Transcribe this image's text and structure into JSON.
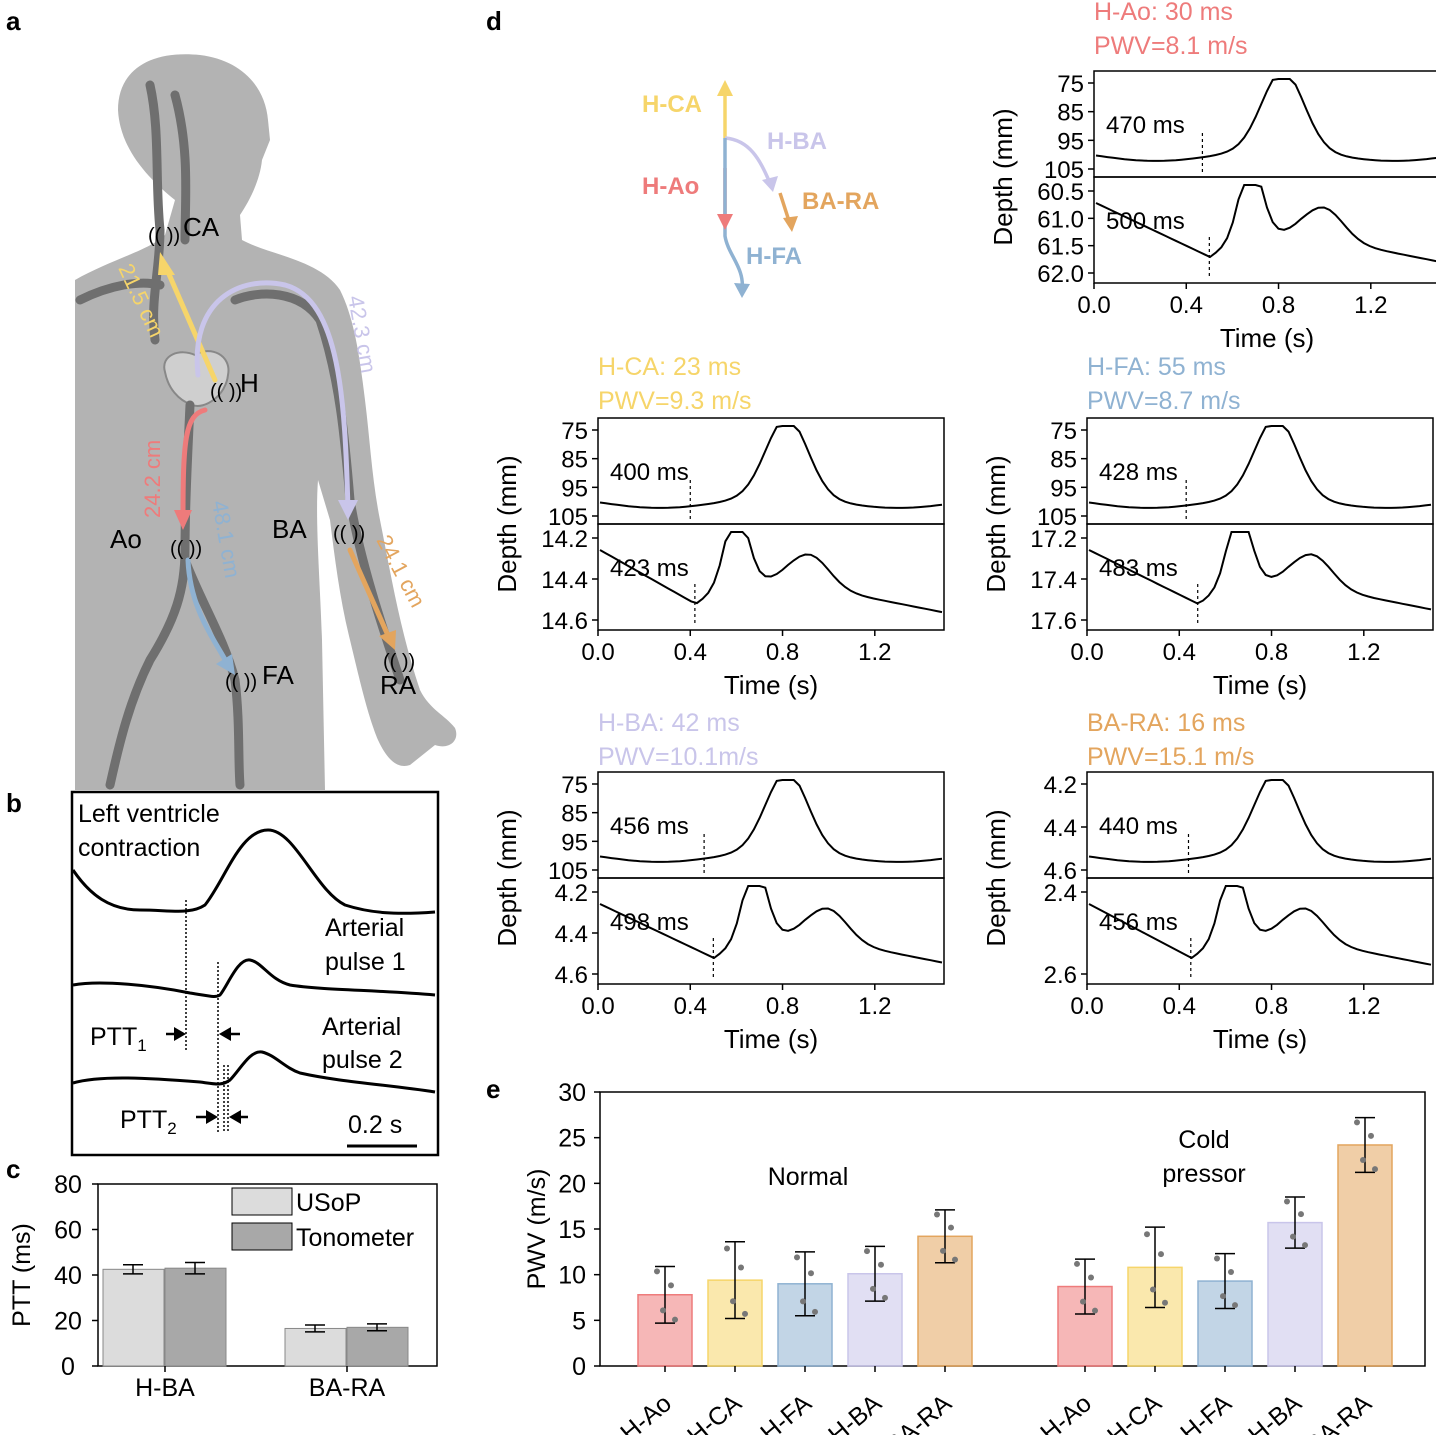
{
  "panel_letters": {
    "a": "a",
    "b": "b",
    "c": "c",
    "d": "d",
    "e": "e"
  },
  "colors": {
    "H-CA": "#f6d56a",
    "H-BA": "#c9c5ea",
    "H-Ao": "#ee7b7b",
    "BA-RA": "#e3a55e",
    "H-FA": "#8fb2d2",
    "body": "#b3b3b3",
    "vessel": "#6f6f6f"
  },
  "panel_a": {
    "sites": {
      "CA": "CA",
      "H": "H",
      "Ao": "Ao",
      "BA": "BA",
      "FA": "FA",
      "RA": "RA"
    },
    "distances": {
      "H-CA": "21.5 cm",
      "H-BA": "42.3 cm",
      "H-Ao": "24.2 cm",
      "H-FA": "48.1 cm",
      "BA-RA": "24.1 cm"
    }
  },
  "panel_b": {
    "label_lv_1": "Left ventricle",
    "label_lv_2": "contraction",
    "pulse1_1": "Arterial",
    "pulse1_2": "pulse 1",
    "pulse2_1": "Arterial",
    "pulse2_2": "pulse 2",
    "ptt1": "PTT",
    "ptt1_sub": "1",
    "ptt2": "PTT",
    "ptt2_sub": "2",
    "scale": "0.2 s"
  },
  "panel_d": {
    "schematic": {
      "H-CA": "H-CA",
      "H-BA": "H-BA",
      "H-Ao": "H-Ao",
      "BA-RA": "BA-RA",
      "H-FA": "H-FA"
    },
    "time_label": "Time (s)",
    "depth_label": "Depth (mm)",
    "x_ticks": [
      "0.0",
      "0.4",
      "0.8",
      "1.2"
    ],
    "subplots": [
      {
        "key": "H-Ao",
        "title1": "H-Ao: 30 ms",
        "title2": "PWV=8.1 m/s",
        "top_ticks": [
          "75",
          "85",
          "95",
          "105"
        ],
        "top_ms": "470 ms",
        "bot_ticks": [
          "60.5",
          "61.0",
          "61.5",
          "62.0"
        ],
        "bot_ms": "500 ms"
      },
      {
        "key": "H-CA",
        "title1": "H-CA: 23 ms",
        "title2": "PWV=9.3 m/s",
        "top_ticks": [
          "75",
          "85",
          "95",
          "105"
        ],
        "top_ms": "400 ms",
        "bot_ticks": [
          "14.2",
          "14.4",
          "14.6"
        ],
        "bot_ms": "423 ms"
      },
      {
        "key": "H-FA",
        "title1": "H-FA: 55 ms",
        "title2": "PWV=8.7 m/s",
        "top_ticks": [
          "75",
          "85",
          "95",
          "105"
        ],
        "top_ms": "428 ms",
        "bot_ticks": [
          "17.2",
          "17.4",
          "17.6"
        ],
        "bot_ms": "483 ms"
      },
      {
        "key": "H-BA",
        "title1": "H-BA: 42 ms",
        "title2": "PWV=10.1m/s",
        "top_ticks": [
          "75",
          "85",
          "95",
          "105"
        ],
        "top_ms": "456 ms",
        "bot_ticks": [
          "4.2",
          "4.4",
          "4.6"
        ],
        "bot_ms": "498 ms"
      },
      {
        "key": "BA-RA",
        "title1": "BA-RA: 16 ms",
        "title2": "PWV=15.1 m/s",
        "top_ticks": [
          "4.2",
          "4.4",
          "4.6"
        ],
        "top_ms": "440 ms",
        "bot_ticks": [
          "2.4",
          "2.6"
        ],
        "bot_ms": "456 ms"
      }
    ]
  },
  "chart_data": [
    {
      "type": "bar",
      "ylabel": "PTT (ms)",
      "ylim": [
        0,
        80
      ],
      "y_ticks": [
        "0",
        "20",
        "40",
        "60",
        "80"
      ],
      "categories": [
        "H-BA",
        "BA-RA"
      ],
      "series": [
        {
          "name": "USoP",
          "values": [
            42.5,
            16.5
          ],
          "errors": [
            2,
            1.5
          ]
        },
        {
          "name": "Tonometer",
          "values": [
            43,
            17
          ],
          "errors": [
            2.5,
            1.5
          ]
        }
      ],
      "legend": "top-right"
    },
    {
      "type": "bar",
      "ylabel": "PWV (m/s)",
      "ylim": [
        0,
        30
      ],
      "y_ticks": [
        "0",
        "5",
        "10",
        "15",
        "20",
        "25",
        "30"
      ],
      "groups": [
        {
          "name": "Normal",
          "categories": [
            "H-Ao",
            "H-CA",
            "H-FA",
            "H-BA",
            "BA-RA"
          ],
          "values": [
            7.8,
            9.4,
            9.0,
            10.1,
            14.2
          ],
          "errors": [
            3.1,
            4.2,
            3.5,
            3.0,
            2.9
          ]
        },
        {
          "name": "Cold pressor",
          "name_line1": "Cold",
          "name_line2": "pressor",
          "categories": [
            "H-Ao",
            "H-CA",
            "H-FA",
            "H-BA",
            "BA-RA"
          ],
          "values": [
            8.7,
            10.8,
            9.3,
            15.7,
            24.2
          ],
          "errors": [
            3.0,
            4.4,
            3.0,
            2.8,
            3.0
          ]
        }
      ]
    }
  ]
}
